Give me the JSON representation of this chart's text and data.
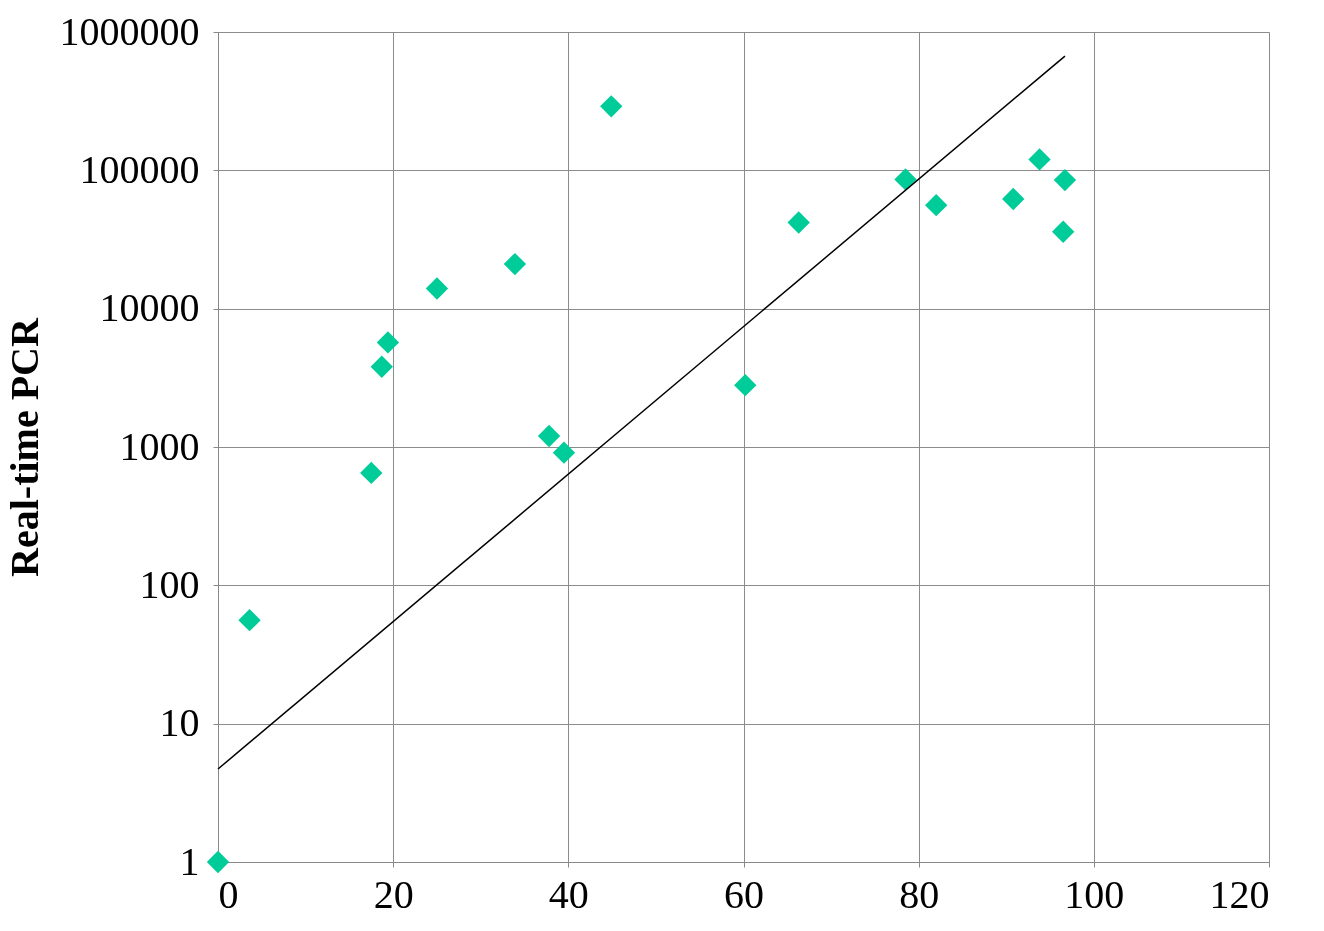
{
  "chart_data": {
    "type": "scatter",
    "ylabel": "Real-time PCR",
    "log": "y",
    "grid": true,
    "marker": "diamond",
    "xlim": [
      0,
      120
    ],
    "xticks": [
      0,
      20,
      40,
      60,
      80,
      100,
      120
    ],
    "ylim": [
      1,
      1000000
    ],
    "yticks": [
      1,
      10,
      100,
      1000,
      10000,
      100000,
      1000000
    ],
    "series": [
      {
        "color": "#00cc99",
        "x": [
          0,
          3.6,
          17.5,
          18.7,
          19.4,
          25.0,
          33.9,
          37.8,
          39.5,
          44.9,
          60.2,
          66.3,
          78.5,
          82.0,
          90.8,
          93.8,
          96.7,
          96.5
        ],
        "values": [
          1,
          56,
          650,
          3800,
          5700,
          14000,
          21000,
          1200,
          910,
          290000,
          2800,
          42000,
          86000,
          56000,
          62000,
          120000,
          85000,
          36000
        ]
      },
      {
        "type": "line",
        "color": "#000000",
        "marker": "none",
        "x": [
          0,
          96.7
        ],
        "values": [
          4.7,
          670000
        ]
      }
    ]
  }
}
